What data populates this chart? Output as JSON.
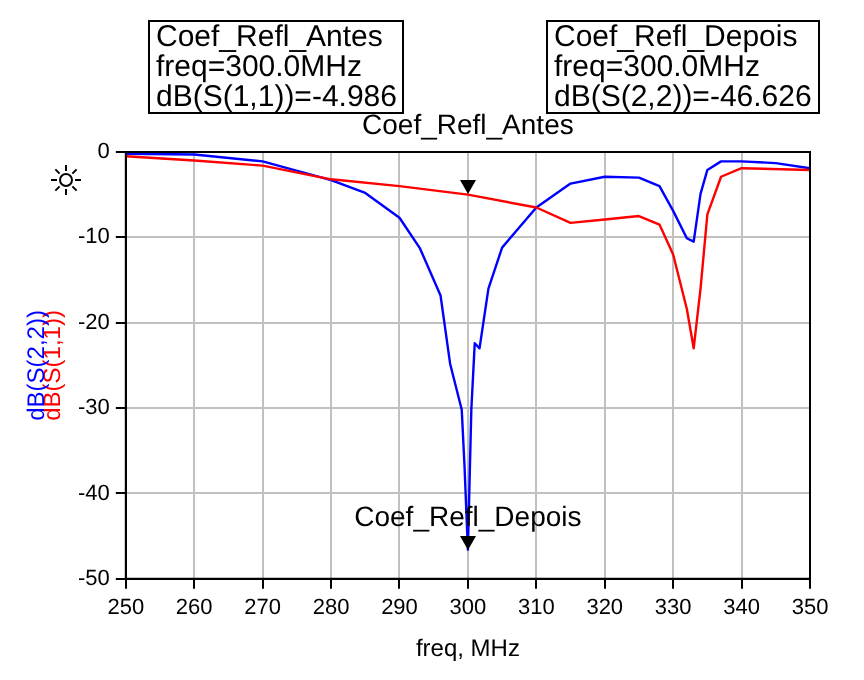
{
  "chart_data": {
    "type": "line",
    "xlabel": "freq, MHz",
    "xlim": [
      250,
      350
    ],
    "xticks": [
      250,
      260,
      270,
      280,
      290,
      300,
      310,
      320,
      330,
      340,
      350
    ],
    "ylim": [
      -50,
      0
    ],
    "yticks": [
      -50,
      -40,
      -30,
      -20,
      -10,
      0
    ],
    "grid": true,
    "marker": "none",
    "line_style": "solid",
    "series": [
      {
        "name": "dB(S(1,1))",
        "color": "#ff0000",
        "x": [
          250,
          260,
          270,
          280,
          290,
          300,
          310,
          315,
          320,
          325,
          328,
          330,
          332,
          333,
          334,
          335,
          337,
          340,
          350
        ],
        "values": [
          -0.5,
          -1,
          -1.6,
          -3.2,
          -4,
          -5,
          -6.5,
          -8.3,
          -7.9,
          -7.5,
          -8.5,
          -12,
          -18.4,
          -23,
          -16,
          -7.3,
          -2.9,
          -1.9,
          -2.1
        ]
      },
      {
        "name": "dB(S(2,2))",
        "color": "#0000ff",
        "x": [
          250,
          260,
          270,
          280,
          285,
          290,
          293,
          296,
          297.4,
          299.1,
          299.5,
          300,
          300.5,
          301,
          301.7,
          303,
          305,
          310,
          315,
          320,
          325,
          328,
          330,
          332,
          333,
          334,
          335,
          337,
          340,
          345,
          350
        ],
        "values": [
          -0.2,
          -0.3,
          -1.1,
          -3.3,
          -4.8,
          -7.7,
          -11.3,
          -16.8,
          -24.8,
          -30.2,
          -36.7,
          -46.6,
          -30.2,
          -22.4,
          -23,
          -16,
          -11.2,
          -6.5,
          -3.7,
          -2.9,
          -3,
          -4,
          -6.9,
          -10.1,
          -10.5,
          -4.9,
          -2.1,
          -1.1,
          -1.1,
          -1.3,
          -1.9
        ]
      }
    ],
    "annotations": [
      "Coef_Refl_Antes\nfreq=300.0MHz\ndB(S(1,1))=-4.986",
      "Coef_Refl_Depois\nfreq=300.0MHz\ndB(S(2,2))=-46.626",
      {
        "text": "Coef_Refl_Antes",
        "x": 300,
        "y": -4.986
      },
      {
        "text": "Coef_Refl_Depois",
        "x": 300,
        "y": -46.626
      }
    ]
  }
}
